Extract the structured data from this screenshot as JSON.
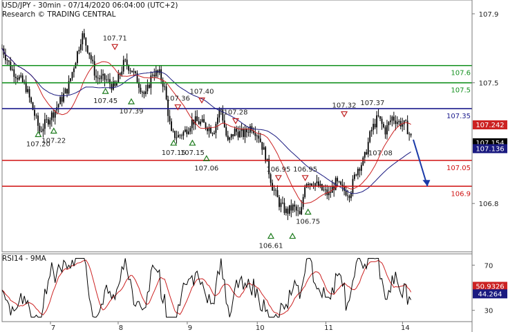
{
  "header": {
    "line1": "USD/JPY - 30min - 07/14/2020 06:04:00 (UTC+2)",
    "line2": "Research © TRADING CENTRAL"
  },
  "rsi_title": "RSI14 - 9MA",
  "colors": {
    "candle": "#000000",
    "ma_fast": "#cc2222",
    "ma_slow": "#1a1a80",
    "support": "#d01010",
    "resistance": "#12901e",
    "pivot": "#1a1a8c",
    "arrow": "#1a3aa8",
    "up_marker": "#1b7a1b",
    "down_marker": "#c02020"
  },
  "chart_data": {
    "type": "candlestick",
    "price_range": [
      106.52,
      107.98
    ],
    "price_ticks": [
      {
        "v": 107.9,
        "t": "107.9"
      },
      {
        "v": 107.5,
        "t": "107.5"
      },
      {
        "v": 106.8,
        "t": "106.8"
      }
    ],
    "x_range": [
      0,
      1
    ],
    "x_ticks": [
      {
        "x": 0.103,
        "t": "7"
      },
      {
        "x": 0.247,
        "t": "8"
      },
      {
        "x": 0.394,
        "t": "9"
      },
      {
        "x": 0.543,
        "t": "10"
      },
      {
        "x": 0.689,
        "t": "11"
      },
      {
        "x": 0.852,
        "t": "14"
      }
    ],
    "levels": [
      {
        "price": 107.6,
        "label": "107.6",
        "kind": "resistance"
      },
      {
        "price": 107.5,
        "label": "107.5",
        "kind": "resistance"
      },
      {
        "price": 107.35,
        "label": "107.35",
        "kind": "pivot"
      },
      {
        "price": 107.05,
        "label": "107.05",
        "kind": "support"
      },
      {
        "price": 106.9,
        "label": "106.9",
        "kind": "support"
      }
    ],
    "current_prices": [
      {
        "v": 107.242,
        "t": "107.242",
        "kind": "ma_fast"
      },
      {
        "v": 107.154,
        "t": "107.154",
        "kind": "price"
      },
      {
        "v": 107.136,
        "t": "107.136",
        "kind": "ma_slow"
      }
    ],
    "projection": {
      "from": [
        0.875,
        107.17
      ],
      "to": [
        0.905,
        106.9
      ]
    },
    "anchors": [
      [
        0,
        107.7
      ],
      [
        0.02,
        107.58
      ],
      [
        0.05,
        107.48
      ],
      [
        0.08,
        107.22
      ],
      [
        0.11,
        107.33
      ],
      [
        0.14,
        107.47
      ],
      [
        0.155,
        107.62
      ],
      [
        0.17,
        107.78
      ],
      [
        0.185,
        107.68
      ],
      [
        0.2,
        107.53
      ],
      [
        0.22,
        107.52
      ],
      [
        0.24,
        107.47
      ],
      [
        0.26,
        107.62
      ],
      [
        0.275,
        107.58
      ],
      [
        0.29,
        107.5
      ],
      [
        0.305,
        107.42
      ],
      [
        0.32,
        107.56
      ],
      [
        0.335,
        107.55
      ],
      [
        0.345,
        107.48
      ],
      [
        0.36,
        107.2
      ],
      [
        0.375,
        107.19
      ],
      [
        0.39,
        107.22
      ],
      [
        0.405,
        107.28
      ],
      [
        0.42,
        107.27
      ],
      [
        0.435,
        107.25
      ],
      [
        0.45,
        107.22
      ],
      [
        0.465,
        107.36
      ],
      [
        0.48,
        107.15
      ],
      [
        0.495,
        107.22
      ],
      [
        0.515,
        107.2
      ],
      [
        0.53,
        107.25
      ],
      [
        0.545,
        107.2
      ],
      [
        0.56,
        107.08
      ],
      [
        0.575,
        106.9
      ],
      [
        0.59,
        106.8
      ],
      [
        0.605,
        106.75
      ],
      [
        0.62,
        106.78
      ],
      [
        0.635,
        106.72
      ],
      [
        0.645,
        106.93
      ],
      [
        0.665,
        106.92
      ],
      [
        0.68,
        106.88
      ],
      [
        0.695,
        106.85
      ],
      [
        0.71,
        106.92
      ],
      [
        0.725,
        106.88
      ],
      [
        0.74,
        106.86
      ],
      [
        0.755,
        107.0
      ],
      [
        0.77,
        107.05
      ],
      [
        0.785,
        107.22
      ],
      [
        0.8,
        107.3
      ],
      [
        0.815,
        107.22
      ],
      [
        0.83,
        107.3
      ],
      [
        0.845,
        107.27
      ],
      [
        0.86,
        107.25
      ],
      [
        0.87,
        107.18
      ]
    ],
    "rsi_range": [
      20,
      80
    ],
    "rsi_ticks": [
      {
        "v": 70,
        "t": "70"
      },
      {
        "v": 30,
        "t": "30"
      }
    ],
    "rsi_values": [
      {
        "v": 50.9326,
        "t": "50.9326",
        "kind": "rsi_ma"
      },
      {
        "v": 44.264,
        "t": "44.264",
        "kind": "rsi"
      }
    ],
    "markers": [
      {
        "x": 0.077,
        "price": 107.2,
        "label": "107.20",
        "dir": "up"
      },
      {
        "x": 0.11,
        "price": 107.22,
        "label": "107.22",
        "dir": "up"
      },
      {
        "x": 0.22,
        "price": 107.45,
        "label": "107.45",
        "dir": "up"
      },
      {
        "x": 0.24,
        "price": 107.71,
        "label": "107.71",
        "dir": "down"
      },
      {
        "x": 0.275,
        "price": 107.39,
        "label": "107.39",
        "dir": "up"
      },
      {
        "x": 0.374,
        "price": 107.36,
        "label": "107.36",
        "dir": "down"
      },
      {
        "x": 0.365,
        "price": 107.15,
        "label": "107.15",
        "dir": "up"
      },
      {
        "x": 0.405,
        "price": 107.15,
        "label": "107.15",
        "dir": "up"
      },
      {
        "x": 0.425,
        "price": 107.4,
        "label": "107.40",
        "dir": "down"
      },
      {
        "x": 0.435,
        "price": 107.06,
        "label": "107.06",
        "dir": "up"
      },
      {
        "x": 0.497,
        "price": 107.28,
        "label": "107.28",
        "dir": "down"
      },
      {
        "x": 0.588,
        "price": 106.95,
        "label": "106.95",
        "dir": "down"
      },
      {
        "x": 0.572,
        "price": 106.61,
        "label": "106.61",
        "dir": "up"
      },
      {
        "x": 0.645,
        "price": 106.95,
        "label": "106.95",
        "dir": "down"
      },
      {
        "x": 0.618,
        "price": 106.61,
        "label": "",
        "dir": "up"
      },
      {
        "x": 0.651,
        "price": 106.75,
        "label": "106.75",
        "dir": "up"
      },
      {
        "x": 0.728,
        "price": 107.32,
        "label": "107.32",
        "dir": "down"
      },
      {
        "x": 0.788,
        "price": 107.37,
        "label": "107.37",
        "dir": "none"
      },
      {
        "x": 0.805,
        "price": 107.08,
        "label": "107.08",
        "dir": "none"
      }
    ]
  }
}
